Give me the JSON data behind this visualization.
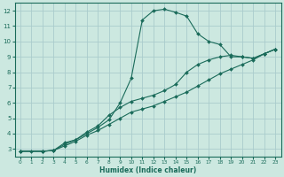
{
  "xlabel": "Humidex (Indice chaleur)",
  "bg_color": "#cce8e0",
  "grid_color": "#aacccc",
  "line_color": "#1a6b5a",
  "xlim": [
    -0.5,
    23.5
  ],
  "ylim": [
    2.5,
    12.5
  ],
  "xticks": [
    0,
    1,
    2,
    3,
    4,
    5,
    6,
    7,
    8,
    9,
    10,
    11,
    12,
    13,
    14,
    15,
    16,
    17,
    18,
    19,
    20,
    21,
    22,
    23
  ],
  "yticks": [
    3,
    4,
    5,
    6,
    7,
    8,
    9,
    10,
    11,
    12
  ],
  "line1_x": [
    0,
    1,
    2,
    3,
    4,
    5,
    6,
    7,
    8,
    9,
    10,
    11,
    12,
    13,
    14,
    15,
    16,
    17,
    18,
    19,
    20,
    21,
    22,
    23
  ],
  "line1_y": [
    2.85,
    2.85,
    2.85,
    2.9,
    3.4,
    3.6,
    4.0,
    4.4,
    4.9,
    6.0,
    7.6,
    11.4,
    12.0,
    12.1,
    11.9,
    11.65,
    10.5,
    10.0,
    9.8,
    9.0,
    9.0,
    8.9,
    9.2,
    9.5
  ],
  "line2_x": [
    0,
    2,
    3,
    4,
    5,
    6,
    7,
    8,
    9,
    10,
    11,
    12,
    13,
    14,
    15,
    16,
    17,
    18,
    19,
    20,
    21,
    22,
    23
  ],
  "line2_y": [
    2.85,
    2.85,
    2.9,
    3.3,
    3.6,
    4.1,
    4.5,
    5.2,
    5.7,
    6.1,
    6.3,
    6.5,
    6.8,
    7.2,
    8.0,
    8.5,
    8.8,
    9.0,
    9.1,
    9.0,
    8.9,
    9.2,
    9.5
  ],
  "line3_x": [
    0,
    2,
    3,
    4,
    5,
    6,
    7,
    8,
    9,
    10,
    11,
    12,
    13,
    14,
    15,
    16,
    17,
    18,
    19,
    20,
    21,
    22,
    23
  ],
  "line3_y": [
    2.85,
    2.85,
    2.9,
    3.2,
    3.5,
    3.9,
    4.2,
    4.6,
    5.0,
    5.4,
    5.6,
    5.8,
    6.1,
    6.4,
    6.7,
    7.1,
    7.5,
    7.9,
    8.2,
    8.5,
    8.8,
    9.2,
    9.5
  ]
}
